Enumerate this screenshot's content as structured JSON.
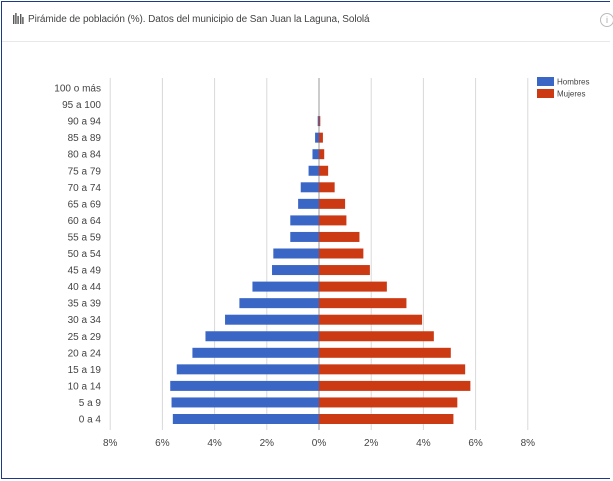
{
  "header": {
    "title": "Pirámide de población (%). Datos del municipio de San Juan la Laguna, Sololá",
    "icon": "population-pyramid-icon",
    "info_icon": "info-icon"
  },
  "colors": {
    "hombres": "#3a67c6",
    "mujeres": "#cc3a14",
    "grid": "#d9d9d9",
    "axis_line": "#999999"
  },
  "chart_data": {
    "type": "bar",
    "orientation": "horizontal",
    "layout": "population-pyramid",
    "categories": [
      "100 o más",
      "95 a 100",
      "90 a 94",
      "85 a 89",
      "80 a 84",
      "75 a 79",
      "70 a 74",
      "65 a 69",
      "60 a 64",
      "55 a 59",
      "50 a 54",
      "45 a 49",
      "40 a 44",
      "35 a 39",
      "30 a 34",
      "25 a 29",
      "20 a 24",
      "15 a 19",
      "10 a 14",
      "5 a 9",
      "0 a 4"
    ],
    "series": [
      {
        "name": "Hombres",
        "color": "#3a67c6",
        "side": "left",
        "values": [
          0.0,
          0.0,
          0.05,
          0.15,
          0.25,
          0.4,
          0.7,
          0.8,
          1.1,
          1.1,
          1.75,
          1.8,
          2.55,
          3.05,
          3.6,
          4.35,
          4.85,
          5.45,
          5.7,
          5.65,
          5.6
        ]
      },
      {
        "name": "Mujeres",
        "color": "#cc3a14",
        "side": "right",
        "values": [
          0.0,
          0.0,
          0.05,
          0.15,
          0.2,
          0.35,
          0.6,
          1.0,
          1.05,
          1.55,
          1.7,
          1.95,
          2.6,
          3.35,
          3.95,
          4.4,
          5.05,
          5.6,
          5.8,
          5.3,
          5.15
        ]
      }
    ],
    "xlim": [
      -8,
      8
    ],
    "xticks": [
      -8,
      -6,
      -4,
      -2,
      0,
      2,
      4,
      6,
      8
    ],
    "xtick_labels": [
      "8%",
      "6%",
      "4%",
      "2%",
      "0%",
      "2%",
      "4%",
      "6%",
      "8%"
    ],
    "grid": true,
    "legend": {
      "position": "top-right",
      "entries": [
        "Hombres",
        "Mujeres"
      ]
    }
  }
}
